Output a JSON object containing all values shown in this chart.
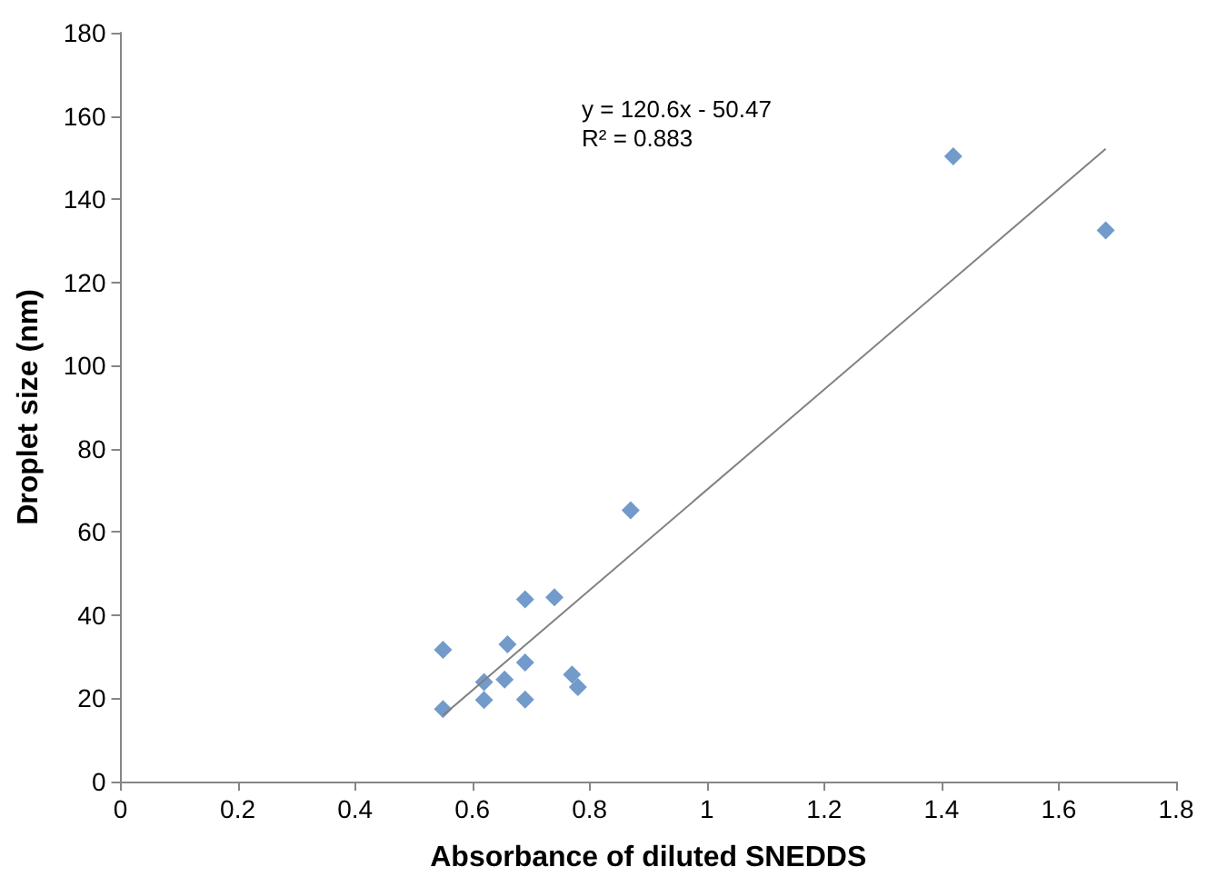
{
  "chart_data": {
    "type": "scatter",
    "xlabel": "Absorbance of diluted SNEDDS",
    "ylabel": "Droplet size (nm)",
    "annotations": [
      "y = 120.6x - 50.47\nR² = 0.883"
    ],
    "series": [
      {
        "color": "#4f81bd",
        "marker": "diamond",
        "x": [
          0.55,
          0.55,
          0.62,
          0.62,
          0.655,
          0.66,
          0.69,
          0.69,
          0.69,
          0.74,
          0.77,
          0.78,
          0.87,
          1.42,
          1.68
        ],
        "values": [
          17.4,
          31.7,
          19.6,
          23.9,
          24.5,
          33,
          19.7,
          28.6,
          43.8,
          44.3,
          25.7,
          22.7,
          65.2,
          150.3,
          132.5
        ]
      },
      {
        "type": "line",
        "color": "#808080",
        "marker": "none",
        "x": [
          0.55,
          1.68
        ],
        "values": [
          15.9,
          152.1
        ]
      }
    ],
    "xlim": [
      0,
      1.8
    ],
    "xticks": [
      0,
      0.2,
      0.4,
      0.6,
      0.8,
      1,
      1.2,
      1.4,
      1.6,
      1.8
    ],
    "ylim": [
      0,
      180
    ],
    "yticks": [
      0,
      20,
      40,
      60,
      80,
      100,
      120,
      140,
      160,
      180
    ],
    "grid": false
  }
}
